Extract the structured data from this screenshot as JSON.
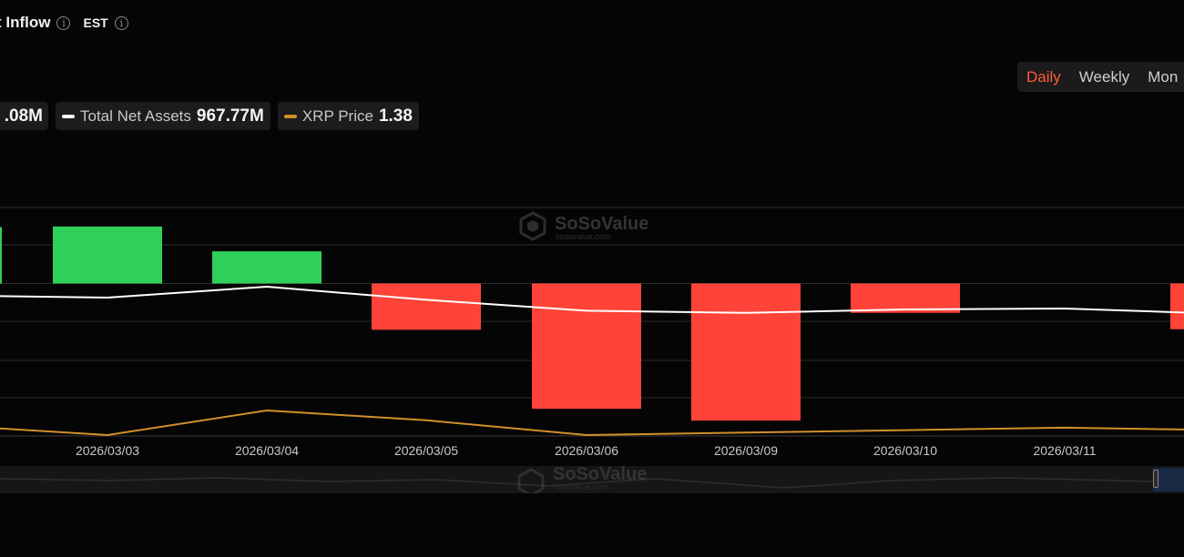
{
  "header": {
    "title": "t Inflow",
    "timezone": "EST"
  },
  "period_tabs": [
    "Daily",
    "Weekly",
    "Mon"
  ],
  "active_period": "Daily",
  "legend": {
    "first_value": ".08M",
    "total_net_assets_label": "Total Net Assets",
    "total_net_assets_value": "967.77M",
    "xrp_price_label": "XRP Price",
    "xrp_price_value": "1.38"
  },
  "watermark": {
    "brand": "SoSoValue",
    "url": "sosovalue.com"
  },
  "colors": {
    "positive": "#2fd05a",
    "negative": "#ff4338",
    "net_assets_line": "#ffffff",
    "price_line": "#d1902a",
    "accent": "#ff5c3a"
  },
  "chart_data": {
    "type": "bar",
    "categories": [
      "",
      "2026/03/03",
      "2026/03/04",
      "2026/03/05",
      "2026/03/06",
      "2026/03/09",
      "2026/03/10",
      "2026/03/11",
      ""
    ],
    "series": [
      {
        "name": "",
        "type": "bar",
        "values": [
          10,
          10.1,
          5.7,
          -8.2,
          -22.2,
          -24.3,
          -5.2,
          0,
          -8.1
        ]
      },
      {
        "name": "Total Net Assets",
        "type": "line",
        "values": [
          1010,
          1005,
          1030,
          1000,
          975,
          970,
          978,
          980,
          967.77
        ]
      },
      {
        "name": "XRP Price",
        "type": "line",
        "values": [
          1.4,
          1.36,
          1.46,
          1.42,
          1.36,
          1.37,
          1.38,
          1.39,
          1.38
        ]
      }
    ],
    "ylim": [
      -28,
      13.5
    ],
    "grid": true,
    "legend_placement": "top-left"
  }
}
